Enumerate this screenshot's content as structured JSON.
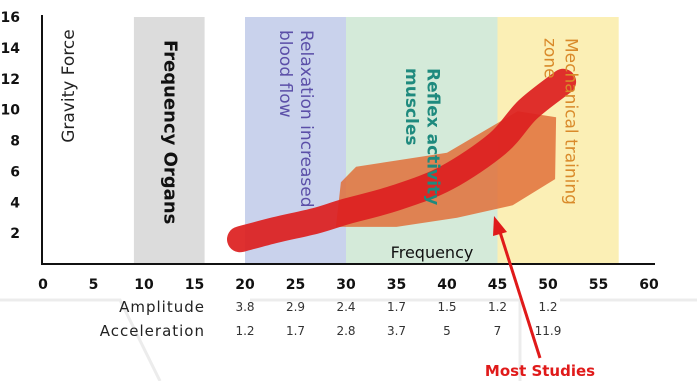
{
  "chart_data": {
    "type": "area",
    "title": "",
    "ylabel": "Gravity Force",
    "xlabel": "Frequency",
    "xlim": [
      0,
      60
    ],
    "ylim": [
      0,
      16
    ],
    "xticks": [
      0,
      5,
      10,
      15,
      20,
      25,
      30,
      35,
      40,
      45,
      50,
      55,
      60
    ],
    "yticks": [
      2,
      4,
      6,
      8,
      10,
      12,
      14,
      16
    ],
    "zones": [
      {
        "label": "Frequency Organs",
        "x0": 9,
        "x1": 16,
        "color": "#dcdcdc",
        "text_color": "#111111"
      },
      {
        "label": "Relaxation increased blood flow",
        "x0": 20,
        "x1": 30,
        "color": "#c9d2ec",
        "text_color": "#5b4fa8"
      },
      {
        "label": "Reflex activity muscles",
        "x0": 30,
        "x1": 45,
        "color": "#d4ead9",
        "text_color": "#1f8a7e"
      },
      {
        "label": "Mechanical training zone",
        "x0": 45,
        "x1": 57,
        "color": "#fbefb5",
        "text_color": "#d98a2a"
      }
    ],
    "band": {
      "color": "#e0703a",
      "upper": [
        [
          29.5,
          5.3
        ],
        [
          31,
          6.3
        ],
        [
          40,
          7.2
        ],
        [
          47,
          9.9
        ],
        [
          50.8,
          9.5
        ]
      ],
      "lower": [
        [
          50.7,
          5.5
        ],
        [
          46.5,
          3.8
        ],
        [
          41,
          3.0
        ],
        [
          35,
          2.4
        ],
        [
          29,
          2.4
        ]
      ]
    },
    "curve": {
      "color": "#dd2020",
      "points": [
        [
          19.5,
          1.6
        ],
        [
          23,
          2.2
        ],
        [
          27,
          2.8
        ],
        [
          30,
          3.4
        ],
        [
          35,
          4.3
        ],
        [
          40,
          5.6
        ],
        [
          45,
          7.8
        ],
        [
          48,
          10.0
        ],
        [
          51.5,
          11.8
        ]
      ]
    },
    "table": {
      "rows": [
        {
          "label": "Amplitude",
          "values": [
            "3.8",
            "2.9",
            "2.4",
            "1.7",
            "1.5",
            "1.2",
            "1.2"
          ]
        },
        {
          "label": "Acceleration",
          "values": [
            "1.2",
            "1.7",
            "2.8",
            "3.7",
            "5",
            "7",
            "11.9"
          ]
        }
      ],
      "x_positions": [
        20,
        25,
        30,
        35,
        40,
        45,
        50
      ]
    },
    "annotation": {
      "text": "Most Studies",
      "color": "#e01a1a"
    }
  }
}
